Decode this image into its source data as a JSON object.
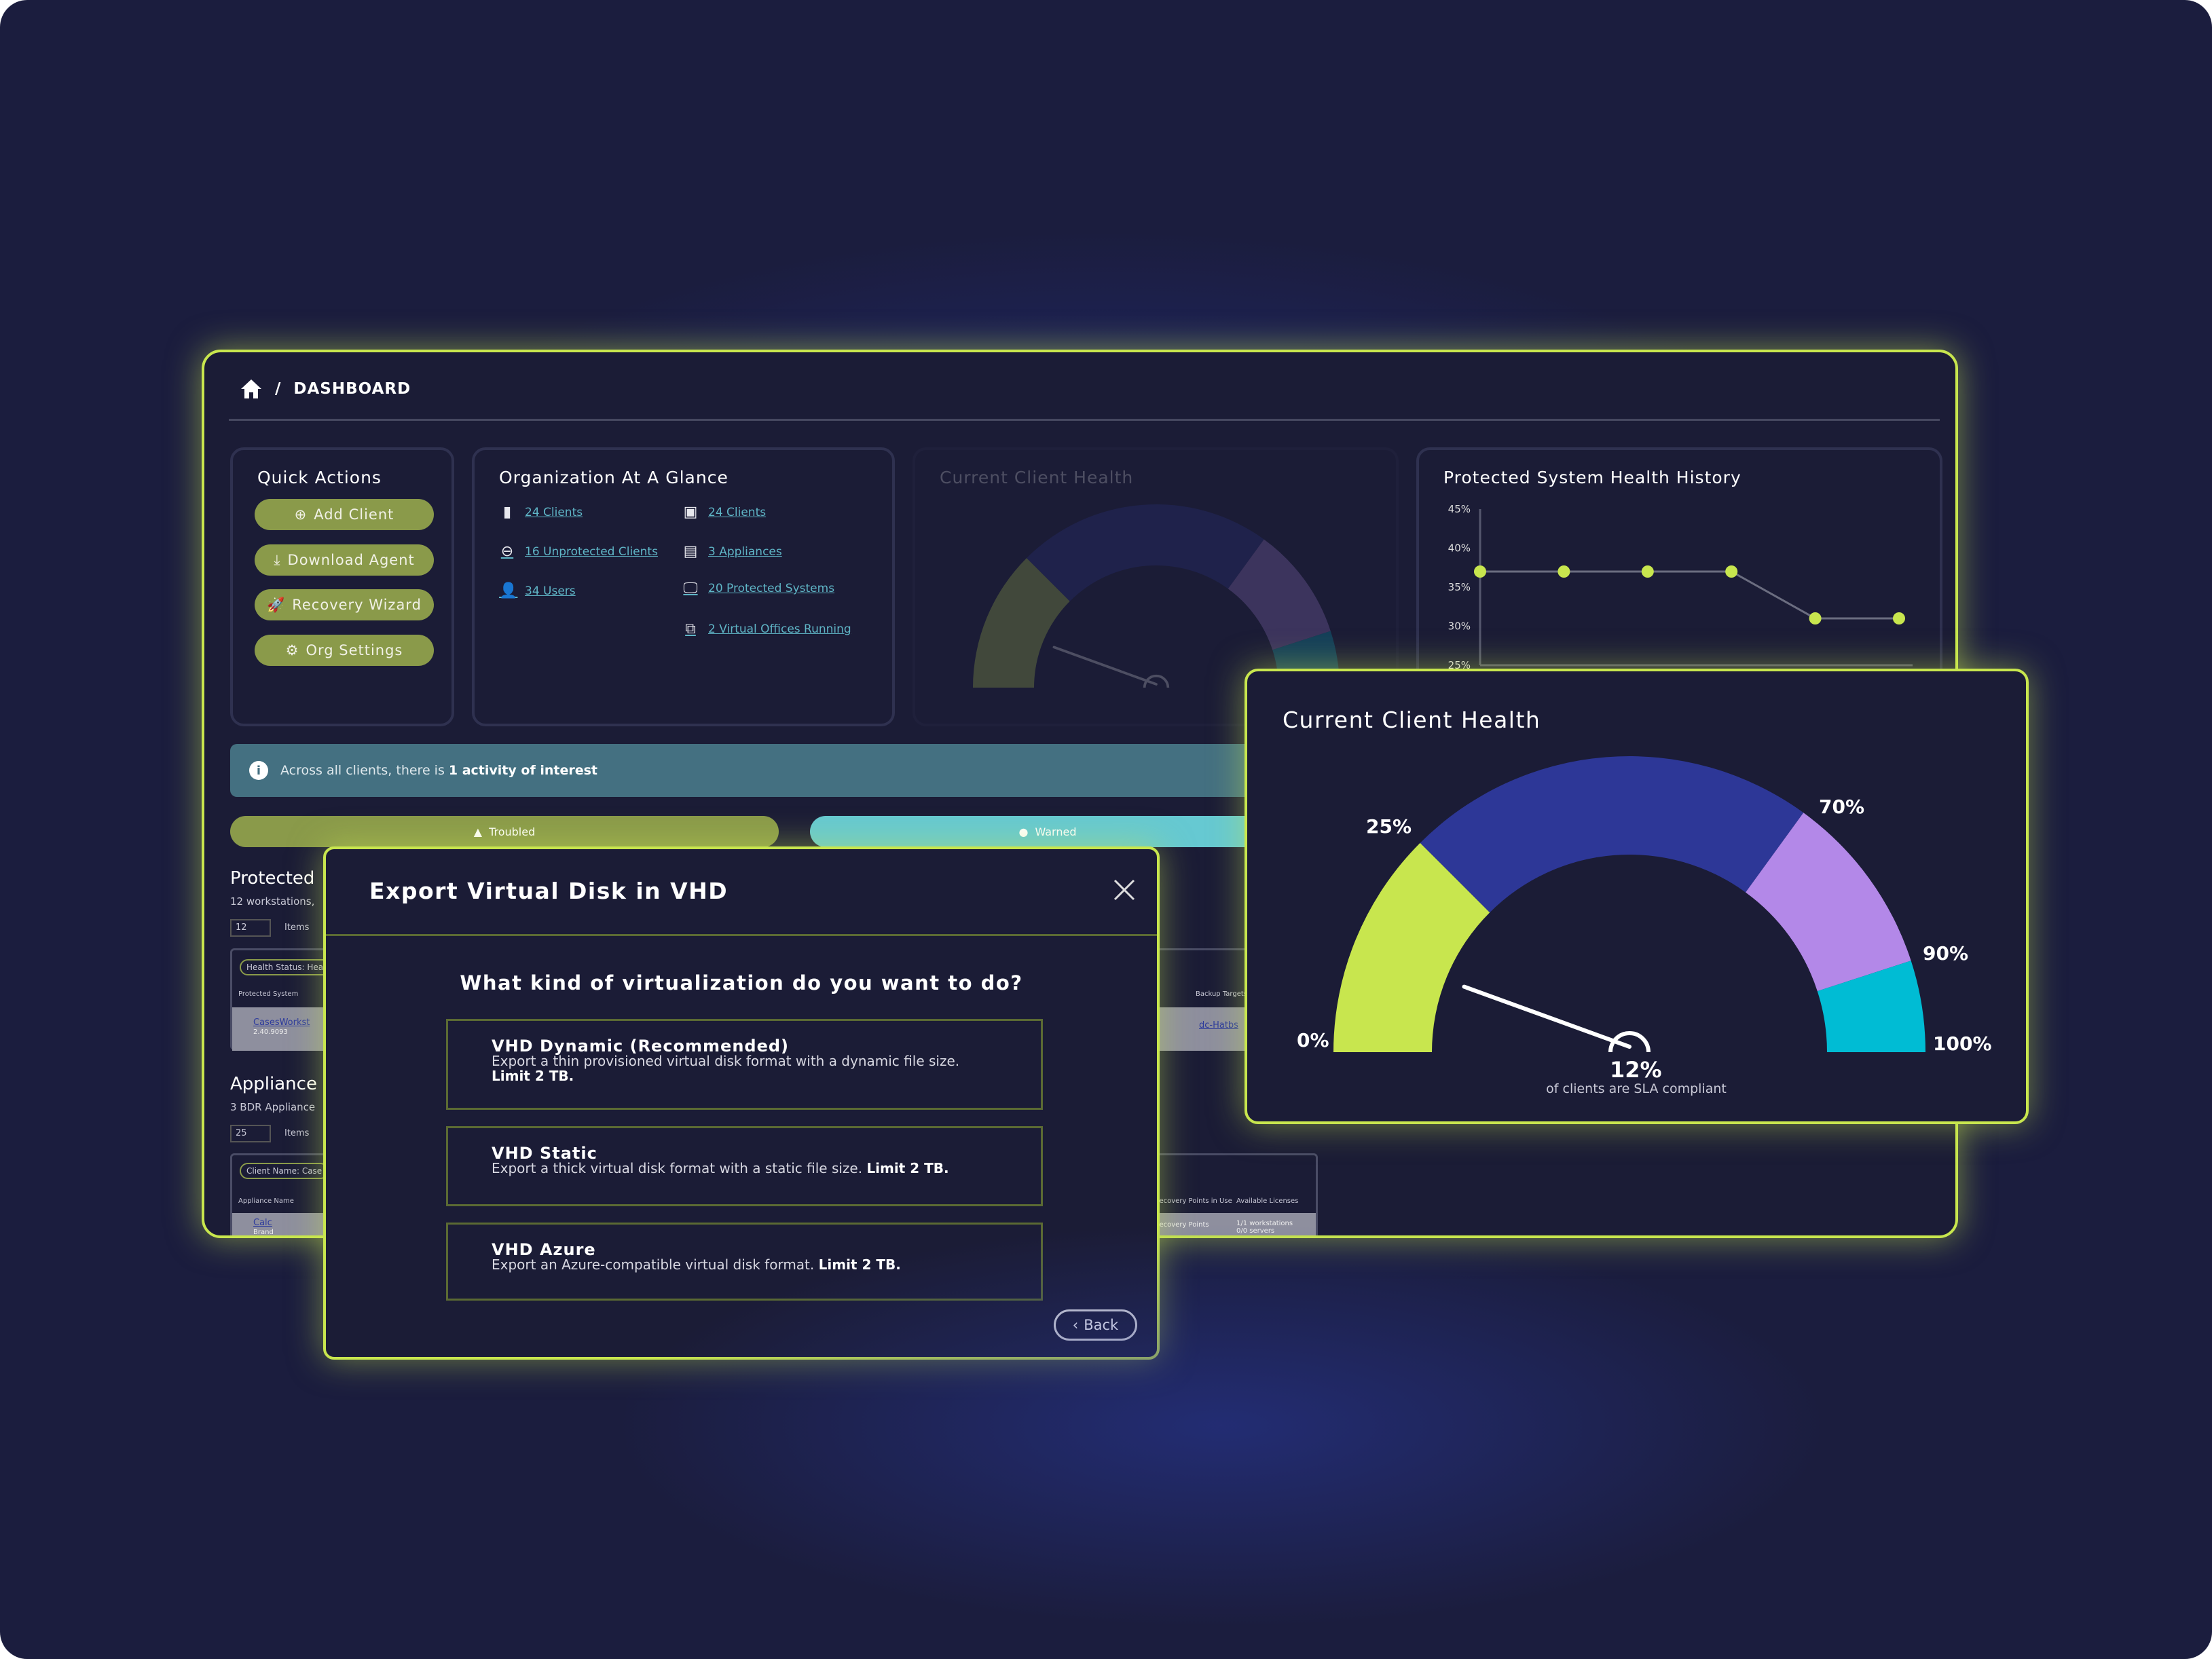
{
  "breadcrumb": {
    "home_icon": "home-icon",
    "separator": "/",
    "page": "DASHBOARD"
  },
  "quick_actions": {
    "title": "Quick Actions",
    "buttons": [
      {
        "label": "Add Client",
        "icon": "plus-circle-icon"
      },
      {
        "label": "Download Agent",
        "icon": "download-icon"
      },
      {
        "label": "Recovery Wizard",
        "icon": "rocket-icon"
      },
      {
        "label": "Org Settings",
        "icon": "gear-icon"
      }
    ]
  },
  "org_glance": {
    "title": "Organization At A Glance",
    "left": [
      {
        "label": "24 Clients",
        "icon": "badge-icon"
      },
      {
        "label": "16 Unprotected Clients",
        "icon": "minus-circle-icon"
      },
      {
        "label": "34 Users",
        "icon": "user-icon"
      }
    ],
    "right": [
      {
        "label": "24 Clients",
        "icon": "safe-icon"
      },
      {
        "label": "3 Appliances",
        "icon": "server-icon"
      },
      {
        "label": "20 Protected Systems",
        "icon": "monitor-icon"
      },
      {
        "label": "2 Virtual Offices Running",
        "icon": "virtual-office-icon"
      }
    ]
  },
  "bg_health_card": {
    "title": "Current Client Health"
  },
  "history": {
    "title": "Protected System Health History"
  },
  "banner": {
    "prefix": "Across all clients, there is ",
    "bold": "1 activity of interest"
  },
  "status_pills": {
    "troubled": "Troubled",
    "warned": "Warned"
  },
  "protected": {
    "title": "Protected",
    "subtitle": "12 workstations,",
    "items_value": "12",
    "items_label": "Items",
    "filter": "Health Status: Heal",
    "col1": "Protected System",
    "row_name": "CasesWorkst",
    "row_sub": "2.40.9093",
    "col_right": "Backup Targets",
    "row_right": "dc-Hatbs"
  },
  "appliances": {
    "title": "Appliance",
    "subtitle": "3 BDR Appliance",
    "items_value": "25",
    "items_label": "Items",
    "filter": "Client Name: Case",
    "col1": "Appliance Name",
    "row_name": "Calc",
    "row_sub": "Brand",
    "col_r1": "Recovery Points in Use",
    "col_r2": "Available Licenses",
    "row_r1": "Recovery Points",
    "row_r2": "1/1 workstations 0/0 servers"
  },
  "modal": {
    "title": "Export Virtual Disk in VHD",
    "close_icon": "close-icon",
    "question": "What kind of virtualization do you want to do?",
    "options": [
      {
        "title": "VHD Dynamic (Recommended)",
        "desc": "Export a thin provisioned virtual disk format with a dynamic file size. ",
        "limit": "Limit 2 TB."
      },
      {
        "title": "VHD Static",
        "desc": "Export a thick virtual disk format with a static file size. ",
        "limit": "Limit 2 TB."
      },
      {
        "title": "VHD Azure",
        "desc": "Export an Azure-compatible virtual disk format. ",
        "limit": "Limit 2 TB."
      }
    ],
    "back": "Back"
  },
  "gauge_panel": {
    "title": "Current Client Health",
    "value_label": "12%",
    "caption": "of clients are SLA compliant"
  },
  "chart_data": [
    {
      "type": "gauge",
      "title": "Current Client Health",
      "value": 12,
      "range": [
        0,
        100
      ],
      "bands": [
        {
          "from": 0,
          "to": 25,
          "color": "#c8e64e"
        },
        {
          "from": 25,
          "to": 70,
          "color": "#2d3797"
        },
        {
          "from": 70,
          "to": 90,
          "color": "#b388e8"
        },
        {
          "from": 90,
          "to": 100,
          "color": "#00bcd4"
        }
      ],
      "tick_labels": [
        "0%",
        "25%",
        "70%",
        "90%",
        "100%"
      ],
      "value_label": "12%",
      "caption": "of clients are SLA compliant"
    },
    {
      "type": "line",
      "title": "Protected System Health History",
      "y": [
        37,
        37,
        37,
        37,
        31,
        31
      ],
      "ylim": [
        25,
        45
      ],
      "y_ticks": [
        "45%",
        "40%",
        "35%",
        "30%",
        "25%"
      ],
      "marker_color": "#c8e64e",
      "line_color": "#6b6d80"
    }
  ]
}
